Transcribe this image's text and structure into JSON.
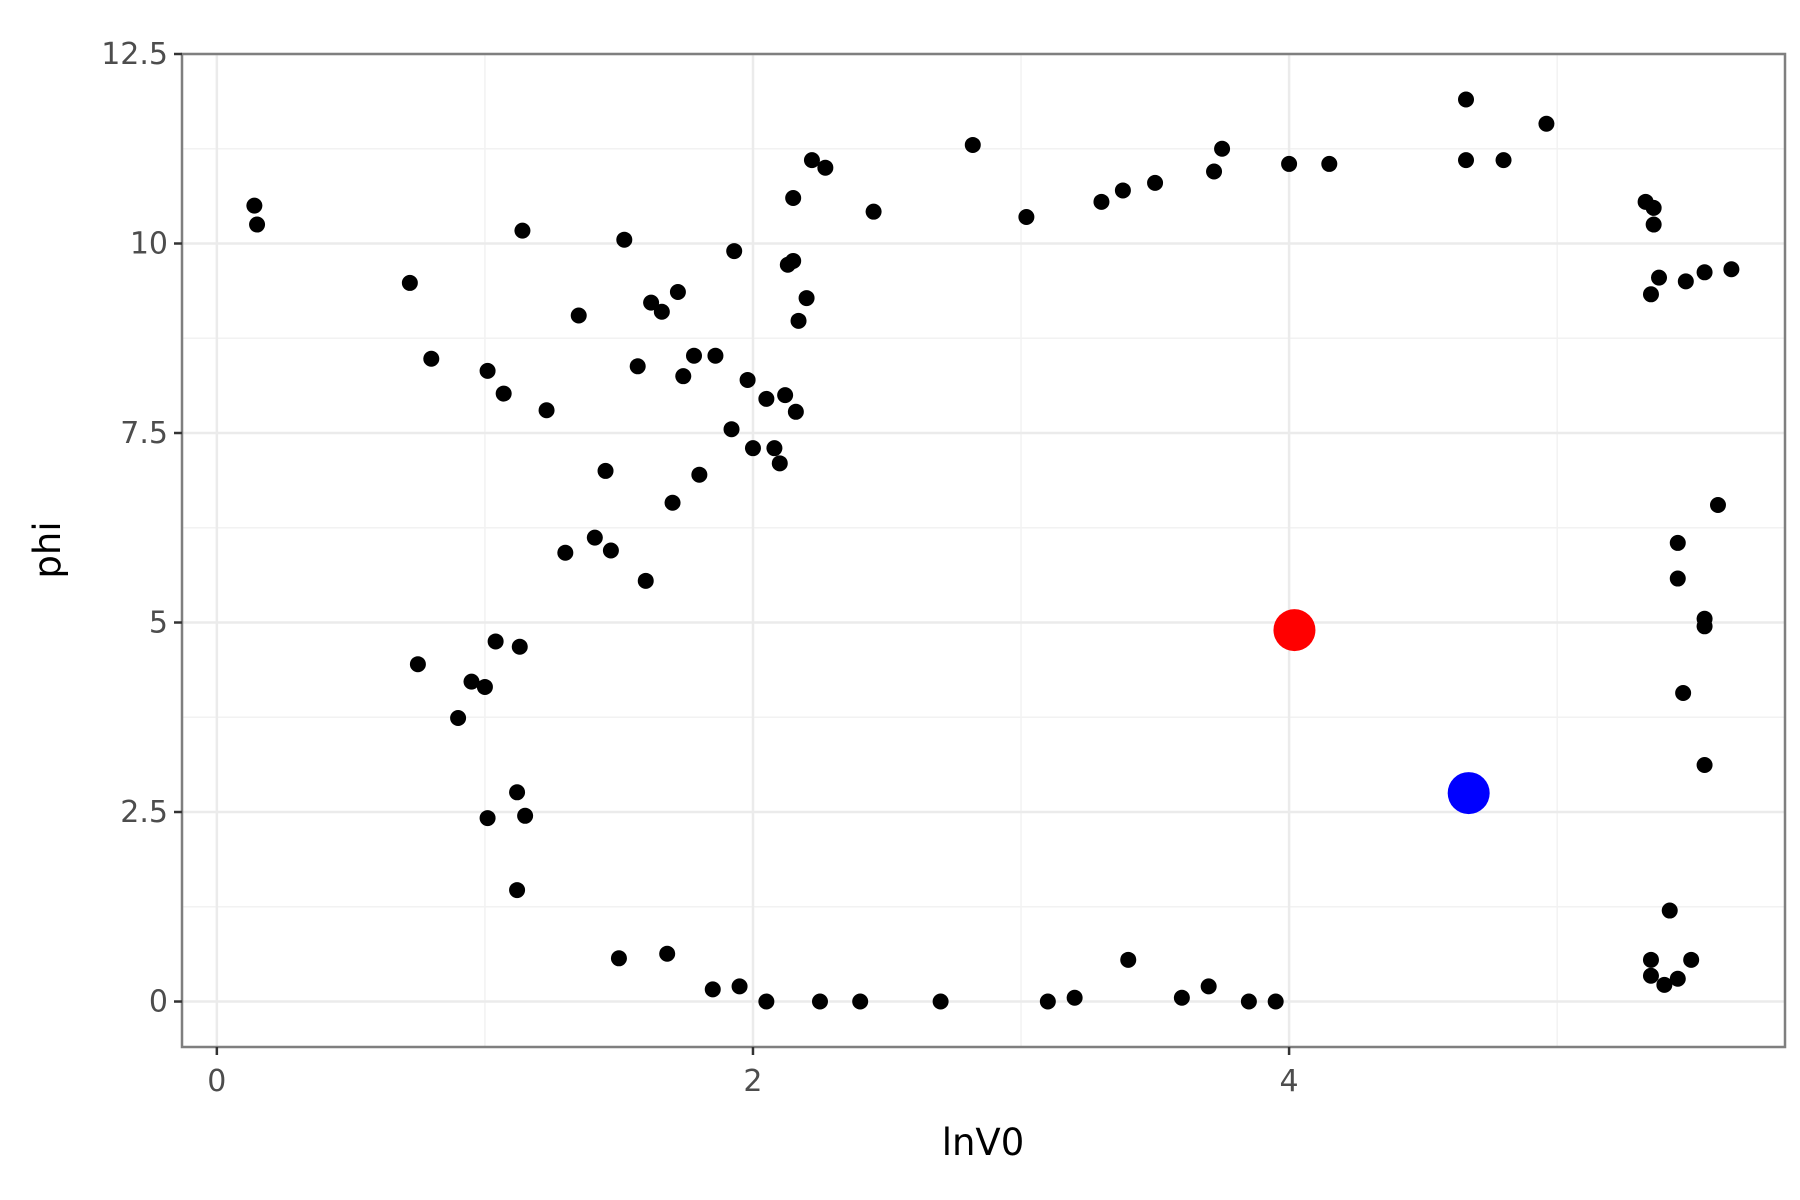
{
  "chart_data": {
    "type": "scatter",
    "title": "",
    "xlabel": "lnV0",
    "ylabel": "phi",
    "xlim": [
      -0.13,
      5.85
    ],
    "ylim": [
      -0.6,
      12.5
    ],
    "x_ticks": [
      0,
      2,
      4
    ],
    "x_tick_labels": [
      "0",
      "2",
      "4"
    ],
    "y_ticks": [
      0,
      2.5,
      5,
      7.5,
      10,
      12.5
    ],
    "y_tick_labels": [
      "0",
      "2.5",
      "5",
      "7.5",
      "10",
      "12.5"
    ],
    "grid": true,
    "legend": "none",
    "point_color": "#000000",
    "series": [
      {
        "points": [
          [
            0.14,
            10.5
          ],
          [
            0.15,
            10.25
          ],
          [
            0.72,
            9.48
          ],
          [
            0.8,
            8.48
          ],
          [
            0.75,
            4.45
          ],
          [
            1.01,
            8.32
          ],
          [
            1.07,
            8.02
          ],
          [
            1.14,
            10.17
          ],
          [
            1.23,
            7.8
          ],
          [
            1.35,
            9.05
          ],
          [
            1.52,
            10.05
          ],
          [
            1.57,
            8.38
          ],
          [
            1.45,
            7.0
          ],
          [
            1.62,
            9.22
          ],
          [
            1.72,
            9.36
          ],
          [
            1.66,
            9.1
          ],
          [
            0.9,
            3.74
          ],
          [
            0.95,
            4.22
          ],
          [
            1.0,
            4.15
          ],
          [
            1.04,
            4.75
          ],
          [
            1.13,
            4.68
          ],
          [
            1.01,
            2.42
          ],
          [
            1.12,
            2.76
          ],
          [
            1.15,
            2.45
          ],
          [
            1.12,
            1.47
          ],
          [
            1.5,
            0.57
          ],
          [
            1.68,
            0.63
          ],
          [
            1.85,
            0.16
          ],
          [
            1.95,
            0.2
          ],
          [
            2.05,
            0.0
          ],
          [
            2.25,
            0.0
          ],
          [
            2.4,
            0.0
          ],
          [
            2.7,
            0.0
          ],
          [
            3.1,
            0.0
          ],
          [
            3.2,
            0.05
          ],
          [
            3.4,
            0.55
          ],
          [
            3.6,
            0.05
          ],
          [
            3.7,
            0.2
          ],
          [
            3.85,
            0.0
          ],
          [
            3.95,
            0.0
          ],
          [
            2.15,
            10.6
          ],
          [
            2.22,
            11.1
          ],
          [
            2.27,
            11.0
          ],
          [
            2.45,
            10.42
          ],
          [
            2.82,
            11.3
          ],
          [
            3.02,
            10.35
          ],
          [
            3.3,
            10.55
          ],
          [
            3.38,
            10.7
          ],
          [
            3.5,
            10.8
          ],
          [
            3.72,
            10.95
          ],
          [
            3.75,
            11.25
          ],
          [
            4.0,
            11.05
          ],
          [
            4.15,
            11.05
          ],
          [
            4.66,
            11.9
          ],
          [
            4.66,
            11.1
          ],
          [
            4.8,
            11.1
          ],
          [
            4.96,
            11.58
          ],
          [
            5.33,
            10.55
          ],
          [
            5.36,
            10.47
          ],
          [
            5.36,
            10.25
          ],
          [
            5.55,
            9.62
          ],
          [
            5.65,
            9.66
          ],
          [
            5.48,
            9.5
          ],
          [
            5.38,
            9.55
          ],
          [
            5.35,
            9.33
          ],
          [
            5.6,
            6.55
          ],
          [
            5.55,
            5.05
          ],
          [
            5.55,
            4.95
          ],
          [
            5.45,
            6.05
          ],
          [
            5.45,
            5.58
          ],
          [
            5.47,
            4.07
          ],
          [
            5.55,
            3.12
          ],
          [
            5.42,
            1.2
          ],
          [
            5.35,
            0.55
          ],
          [
            5.5,
            0.55
          ],
          [
            5.45,
            0.3
          ],
          [
            5.4,
            0.22
          ],
          [
            5.35,
            0.34
          ],
          [
            1.3,
            5.92
          ],
          [
            1.41,
            6.12
          ],
          [
            1.47,
            5.95
          ],
          [
            1.6,
            5.55
          ],
          [
            1.8,
            6.95
          ],
          [
            1.7,
            6.58
          ],
          [
            1.92,
            7.55
          ],
          [
            1.98,
            8.2
          ],
          [
            1.93,
            9.9
          ],
          [
            2.05,
            7.95
          ],
          [
            2.12,
            8.0
          ],
          [
            2.16,
            7.78
          ],
          [
            2.08,
            7.3
          ],
          [
            2.17,
            8.98
          ],
          [
            2.2,
            9.28
          ],
          [
            2.13,
            9.72
          ],
          [
            2.15,
            9.77
          ],
          [
            1.74,
            8.25
          ],
          [
            1.78,
            8.52
          ],
          [
            1.86,
            8.52
          ],
          [
            2.0,
            7.3
          ],
          [
            2.1,
            7.1
          ]
        ]
      },
      {
        "name": "",
        "color": "#ff0000",
        "points": [
          [
            4.02,
            4.9
          ]
        ]
      },
      {
        "name": "",
        "color": "#0000ff",
        "points": [
          [
            4.67,
            2.75
          ]
        ]
      }
    ]
  }
}
